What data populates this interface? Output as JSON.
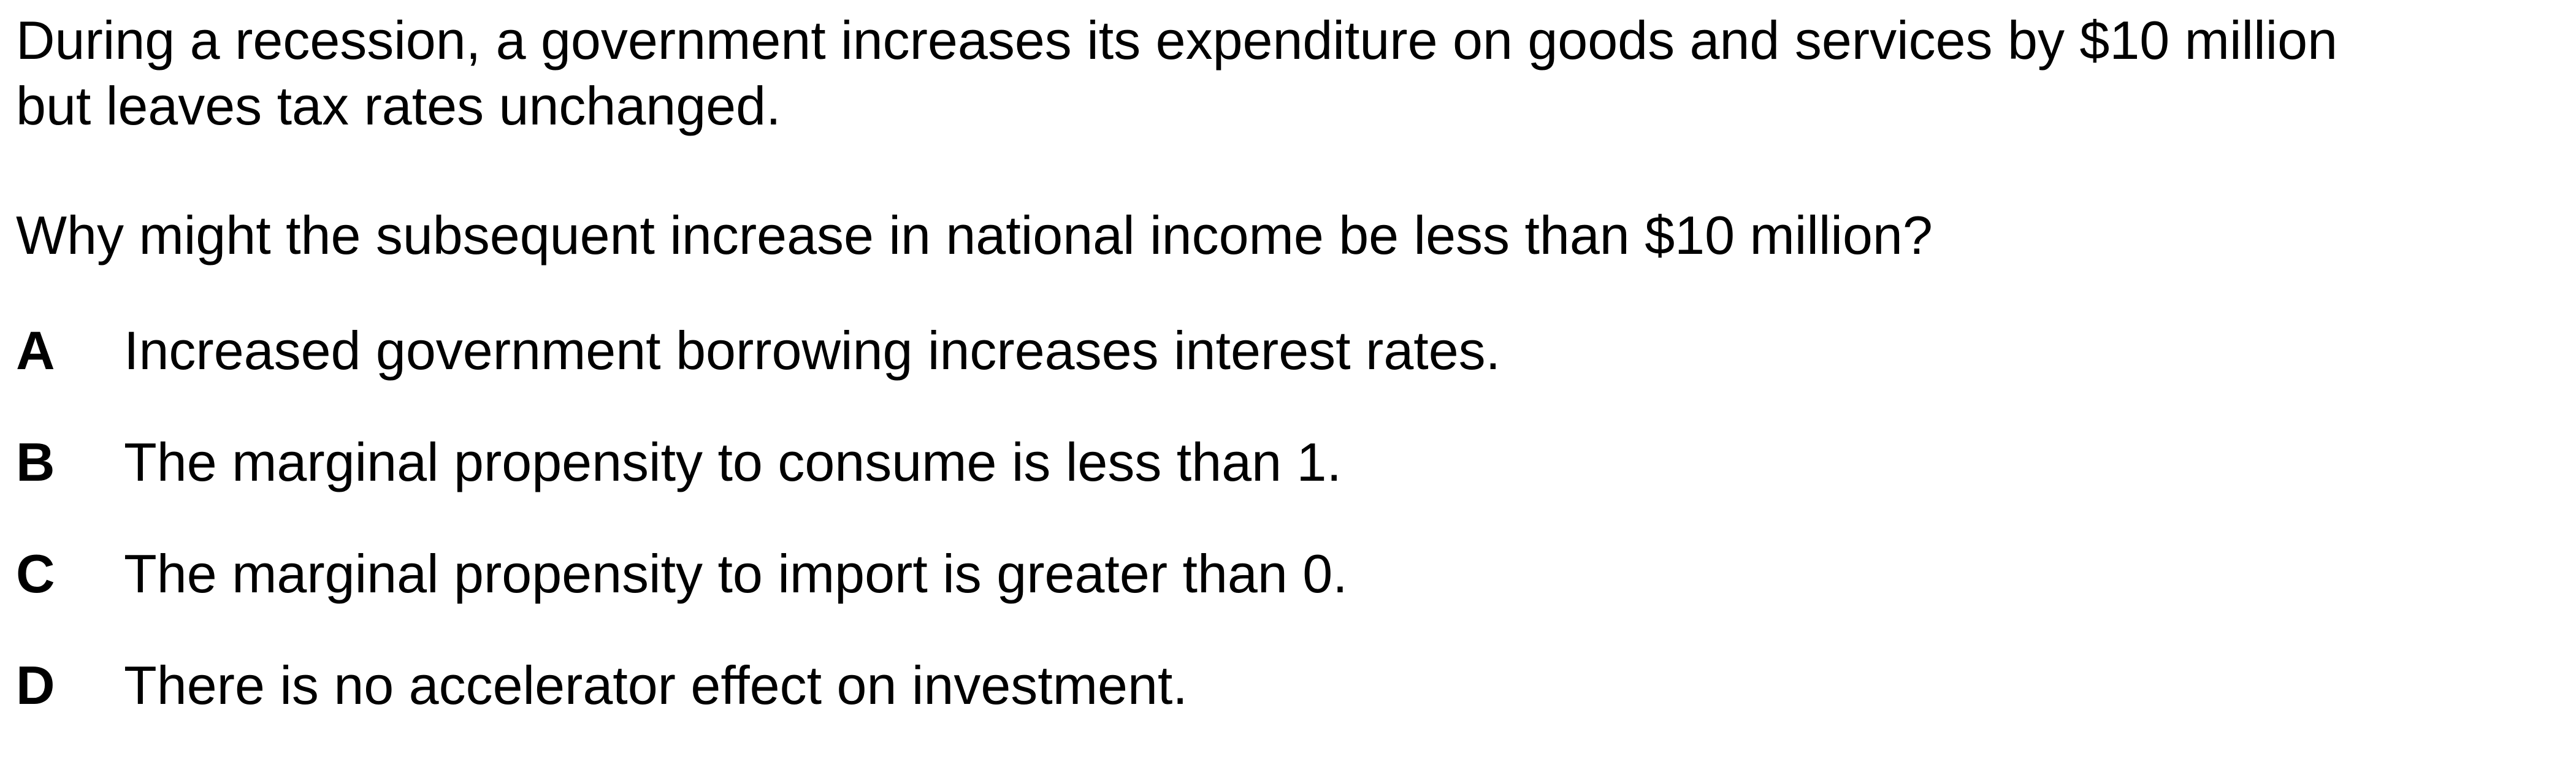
{
  "question": {
    "intro_line1": "During a recession, a government increases its expenditure on goods and services by $10 million",
    "intro_line2": "but leaves tax rates unchanged.",
    "prompt": "Why might the subsequent increase in national income be less than $10 million?"
  },
  "options": [
    {
      "letter": "A",
      "text": "Increased government borrowing increases interest rates."
    },
    {
      "letter": "B",
      "text": "The marginal propensity to consume is less than 1."
    },
    {
      "letter": "C",
      "text": "The marginal propensity to import is greater than 0."
    },
    {
      "letter": "D",
      "text": "There is no accelerator effect on investment."
    }
  ]
}
